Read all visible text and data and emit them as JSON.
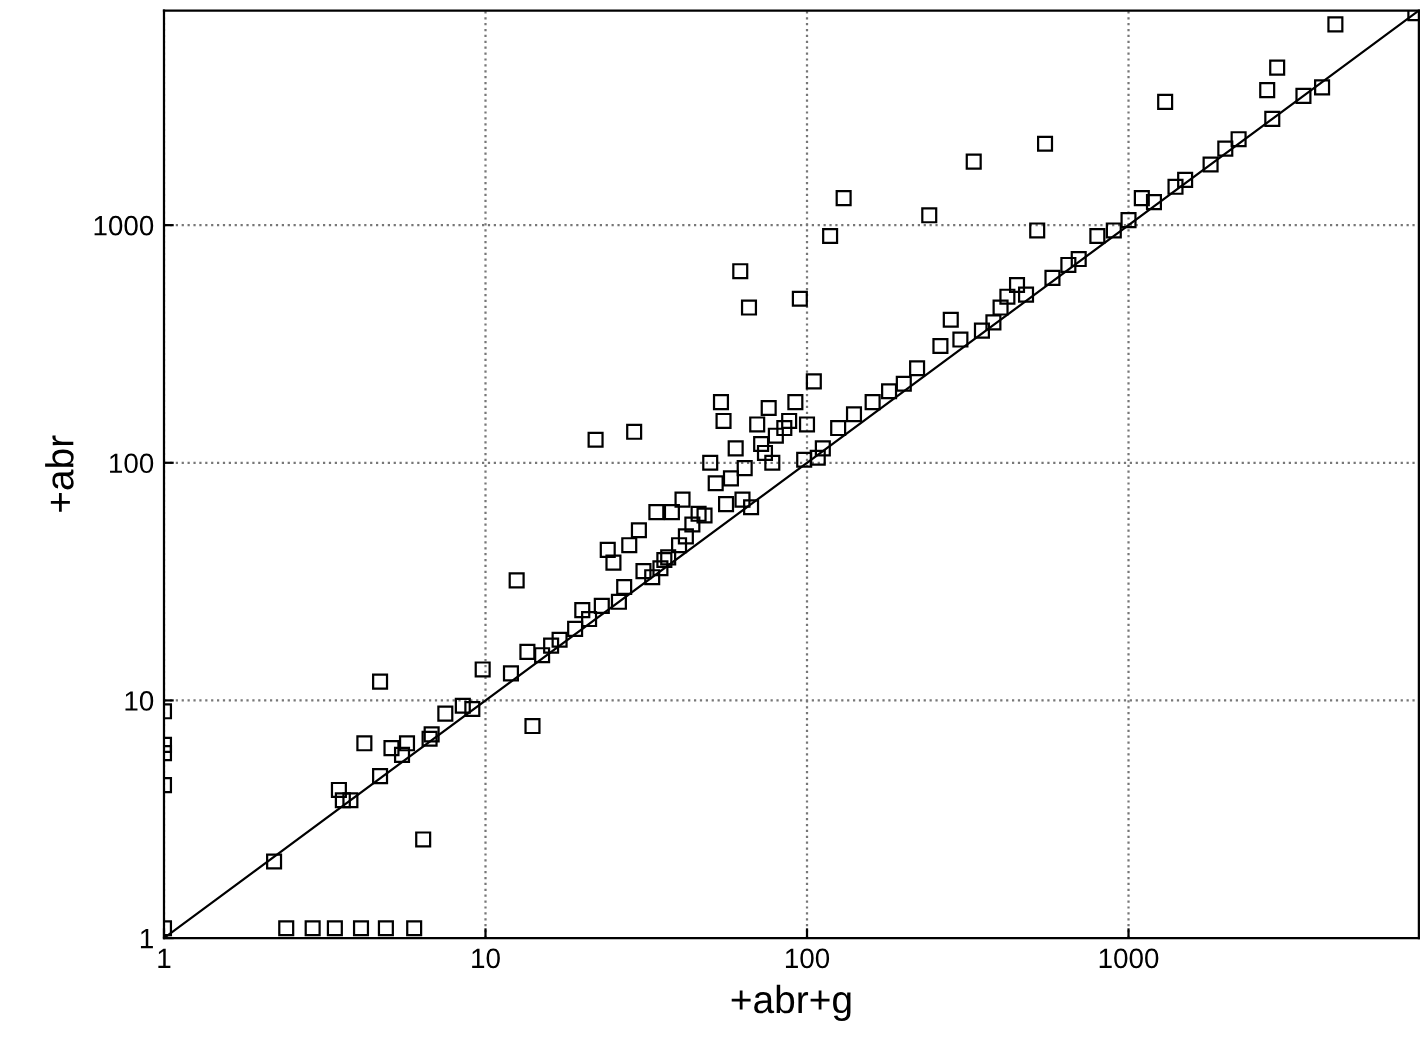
{
  "chart_data": {
    "type": "scatter",
    "xlabel": "+abr+g",
    "ylabel": "+abr",
    "log": "xy",
    "grid": true,
    "marker": "square",
    "xlim": [
      1,
      8000
    ],
    "ylim": [
      1,
      8000
    ],
    "xticks": [
      1,
      10,
      100,
      1000
    ],
    "yticks": [
      1,
      10,
      100,
      1000
    ],
    "series": [
      {
        "color": "#000000",
        "x": [
          1,
          1,
          1,
          1,
          1,
          2.4,
          2.9,
          3.4,
          4.1,
          4.9,
          6.0,
          2.2,
          3.5,
          3.6,
          3.8,
          4.2,
          4.7,
          4.7,
          5.1,
          5.5,
          5.7,
          6.4,
          6.7,
          6.8,
          7.5,
          8.5,
          9.1,
          9.8,
          12,
          12.5,
          13.5,
          14,
          15,
          16,
          17,
          19,
          20,
          21,
          22,
          23,
          24,
          25,
          26,
          27,
          28,
          29,
          30,
          31,
          33,
          34,
          35,
          36,
          37,
          38,
          40,
          41,
          42,
          44,
          46,
          48,
          50,
          52,
          54,
          55,
          56,
          58,
          60,
          62,
          63,
          64,
          66,
          67,
          70,
          72,
          74,
          76,
          78,
          80,
          85,
          88,
          92,
          95,
          98,
          100,
          105,
          108,
          112,
          118,
          125,
          130,
          140,
          160,
          180,
          200,
          220,
          240,
          260,
          280,
          300,
          330,
          350,
          380,
          400,
          420,
          450,
          480,
          520,
          550,
          580,
          650,
          700,
          800,
          900,
          1000,
          1100,
          1200,
          1300,
          1400,
          1500,
          1800,
          2000,
          2200,
          2700,
          2800,
          2900,
          3500,
          4000,
          4400,
          7800
        ],
        "values": [
          9,
          6.5,
          6,
          4.4,
          1.1,
          1.1,
          1.1,
          1.1,
          1.1,
          1.1,
          1.1,
          2.1,
          4.2,
          3.8,
          3.8,
          6.6,
          12,
          4.8,
          6.3,
          5.9,
          6.6,
          2.6,
          6.9,
          7.2,
          8.8,
          9.5,
          9.2,
          13.5,
          13,
          32,
          16,
          7.8,
          15.5,
          17,
          18,
          20,
          24,
          22,
          125,
          25,
          43,
          38,
          26,
          30,
          45,
          135,
          52,
          35,
          33,
          62,
          36,
          39,
          40,
          62,
          45,
          70,
          49,
          55,
          61,
          60,
          100,
          82,
          180,
          150,
          67,
          86,
          115,
          640,
          70,
          95,
          450,
          65,
          145,
          120,
          110,
          170,
          100,
          130,
          140,
          150,
          180,
          490,
          103,
          145,
          220,
          105,
          115,
          900,
          140,
          1300,
          160,
          180,
          200,
          215,
          250,
          1100,
          310,
          400,
          330,
          1850,
          360,
          390,
          450,
          500,
          560,
          510,
          950,
          2200,
          600,
          680,
          720,
          900,
          950,
          1050,
          1300,
          1250,
          3300,
          1450,
          1550,
          1800,
          2100,
          2300,
          3700,
          2800,
          4600,
          3500,
          3800,
          7000,
          7800
        ]
      },
      {
        "type": "line",
        "marker": "none",
        "color": "#000000",
        "x": [
          1,
          8000
        ],
        "values": [
          1,
          8000
        ]
      }
    ]
  }
}
